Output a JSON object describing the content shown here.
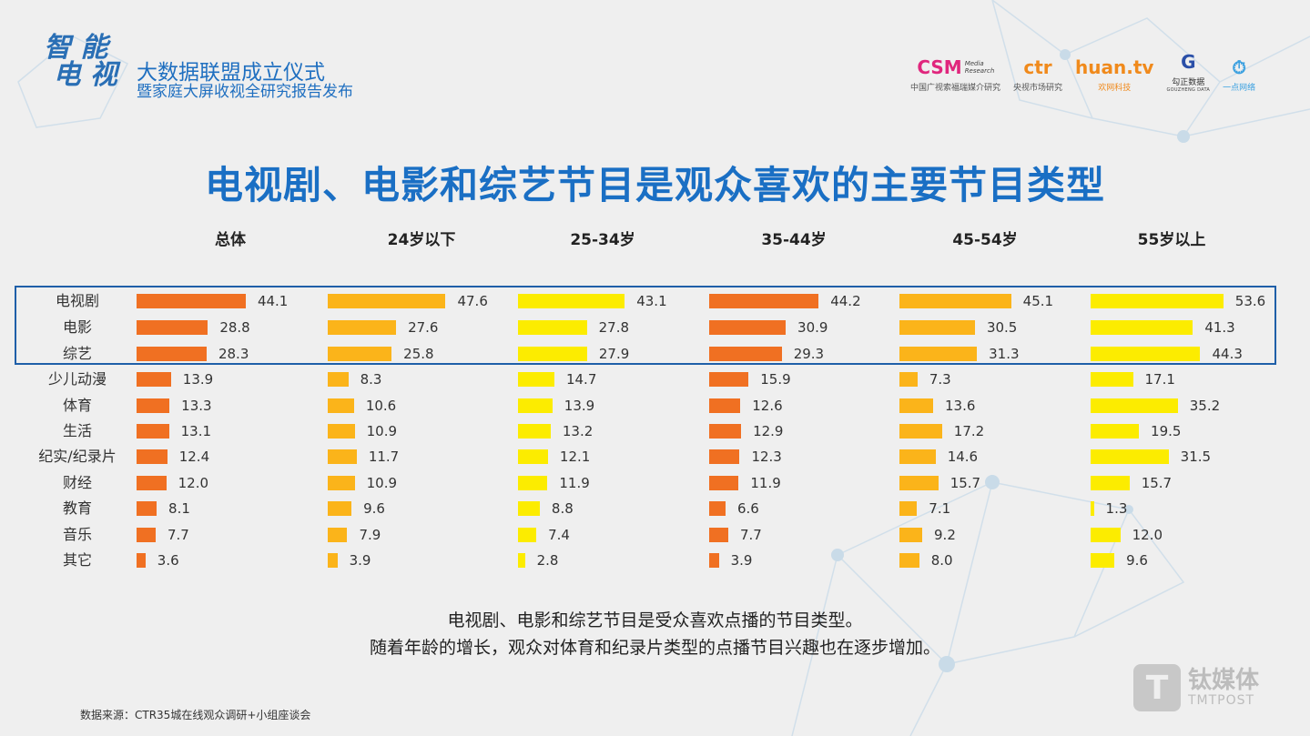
{
  "header": {
    "logo_text": "智能电视",
    "event_line1": "大数据联盟成立仪式",
    "event_line2": "暨家庭大屏收视全研究报告发布",
    "partners": [
      {
        "mark": "CSM",
        "sub": "Media Research",
        "name": "中国广视索福瑞媒介研究",
        "color": "#e0267d"
      },
      {
        "mark": "ctr",
        "name": "央视市场研究",
        "color": "#f08a1c"
      },
      {
        "mark": "huan.tv",
        "name": "欢网科技",
        "color": "#f08a1c"
      },
      {
        "mark": "G",
        "name": "勾正数据",
        "sub": "GOUZHENG DATA",
        "color": "#2a4fa8"
      },
      {
        "mark": "⏱",
        "name": "一点网络",
        "color": "#3aa0e0"
      }
    ]
  },
  "title": "电视剧、电影和综艺节目是观众喜欢的主要节目类型",
  "chart_data": {
    "type": "bar",
    "orientation": "horizontal",
    "panels": [
      "总体",
      "24岁以下",
      "25-34岁",
      "35-44岁",
      "45-54岁",
      "55岁以上"
    ],
    "categories": [
      "电视剧",
      "电影",
      "综艺",
      "少儿动漫",
      "体育",
      "生活",
      "纪实/纪录片",
      "财经",
      "教育",
      "音乐",
      "其它"
    ],
    "highlighted_categories": [
      "电视剧",
      "电影",
      "综艺"
    ],
    "series": [
      {
        "values": [
          44.1,
          28.8,
          28.3,
          13.9,
          13.3,
          13.1,
          12.4,
          12.0,
          8.1,
          7.7,
          3.6
        ],
        "color": "#f07022"
      },
      {
        "values": [
          47.6,
          27.6,
          25.8,
          8.3,
          10.6,
          10.9,
          11.7,
          10.9,
          9.6,
          7.9,
          3.9
        ],
        "color": "#fbb41a"
      },
      {
        "values": [
          43.1,
          27.8,
          27.9,
          14.7,
          13.9,
          13.2,
          12.1,
          11.9,
          8.8,
          7.4,
          2.8
        ],
        "color": "#fcec00"
      },
      {
        "values": [
          44.2,
          30.9,
          29.3,
          15.9,
          12.6,
          12.9,
          12.3,
          11.9,
          6.6,
          7.7,
          3.9
        ],
        "color": "#f07022"
      },
      {
        "values": [
          45.1,
          30.5,
          31.3,
          7.3,
          13.6,
          17.2,
          14.6,
          15.7,
          7.1,
          9.2,
          8.0
        ],
        "color": "#fbb41a"
      },
      {
        "values": [
          53.6,
          41.3,
          44.3,
          17.1,
          35.2,
          19.5,
          31.5,
          15.7,
          1.3,
          12.0,
          9.6
        ],
        "color": "#fcec00"
      }
    ],
    "value_labels": true,
    "grid": false,
    "xlim": [
      0,
      60
    ]
  },
  "notes": [
    "电视剧、电影和综艺节目是受众喜欢点播的节目类型。",
    "随着年龄的增长，观众对体育和纪录片类型的点播节目兴趣也在逐步增加。"
  ],
  "source": "数据来源：CTR35城在线观众调研+小组座谈会",
  "watermark": {
    "cn": "钛媒体",
    "en": "TMTPOST"
  }
}
